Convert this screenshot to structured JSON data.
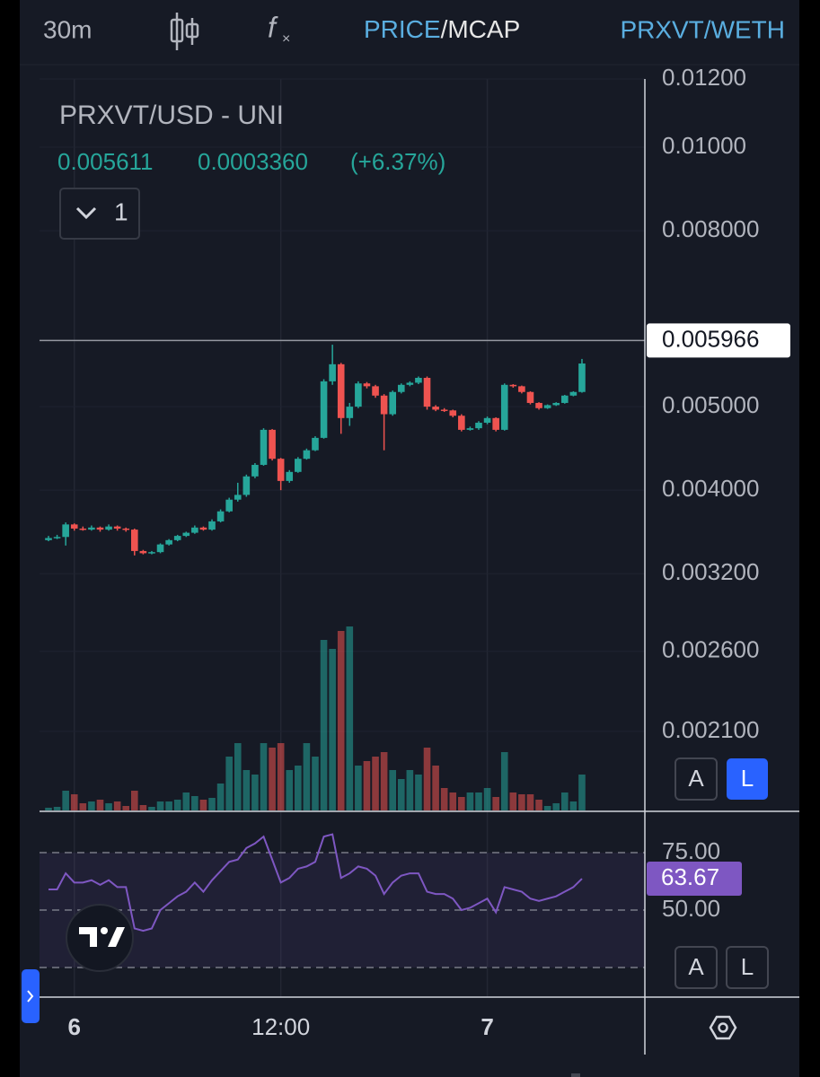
{
  "toolbar": {
    "interval": "30m",
    "price": "PRICE",
    "separator": "/",
    "mcap": "MCAP",
    "pair": "PRXVT/WETH"
  },
  "controls": {
    "auto": "A",
    "log": "L"
  },
  "chart_data": {
    "type": "candlestick",
    "title": "PRXVT/USD - UNI",
    "legend_values": [
      "0.005611",
      "0.0003360",
      "(+6.37%)"
    ],
    "indicator_count": "1",
    "up_color": "#26a69a",
    "down_color": "#ef5350",
    "log_scale": true,
    "grid": true,
    "categories": [
      null,
      null,
      null,
      "6",
      null,
      null,
      null,
      null,
      null,
      null,
      null,
      null,
      null,
      null,
      null,
      null,
      null,
      null,
      null,
      null,
      null,
      null,
      null,
      null,
      null,
      null,
      null,
      "12:00",
      null,
      null,
      null,
      null,
      null,
      null,
      null,
      null,
      null,
      null,
      null,
      null,
      null,
      null,
      null,
      null,
      null,
      null,
      null,
      null,
      null,
      null,
      null,
      "7",
      null,
      null,
      null,
      null,
      null,
      null,
      null,
      null,
      null,
      null,
      null
    ],
    "open": [
      0.0035,
      0.00352,
      0.00353,
      0.00365,
      0.00361,
      0.0036,
      0.00362,
      0.0036,
      0.00363,
      0.00361,
      0.0036,
      0.0034,
      0.00338,
      0.00339,
      0.00346,
      0.0035,
      0.00354,
      0.00357,
      0.00362,
      0.0036,
      0.00368,
      0.00378,
      0.0039,
      0.00395,
      0.00415,
      0.00428,
      0.0047,
      0.00435,
      0.0041,
      0.0042,
      0.00435,
      0.00445,
      0.0046,
      0.00535,
      0.0056,
      0.00485,
      0.005,
      0.00532,
      0.00528,
      0.00515,
      0.0049,
      0.0052,
      0.0053,
      0.00533,
      0.0054,
      0.005,
      0.00496,
      0.00495,
      0.00488,
      0.0047,
      0.00472,
      0.00479,
      0.00485,
      0.0047,
      0.0053,
      0.00528,
      0.0052,
      0.00505,
      0.00498,
      0.00502,
      0.00505,
      0.00515,
      0.0052
    ],
    "high": [
      0.00354,
      0.00355,
      0.00367,
      0.00366,
      0.00363,
      0.00364,
      0.00363,
      0.00365,
      0.00364,
      0.00362,
      0.00361,
      0.00341,
      0.0034,
      0.00347,
      0.00351,
      0.00355,
      0.00358,
      0.00364,
      0.00363,
      0.0037,
      0.0038,
      0.00392,
      0.00408,
      0.00417,
      0.0043,
      0.00472,
      0.00471,
      0.00436,
      0.00422,
      0.00437,
      0.00447,
      0.00462,
      0.00538,
      0.0059,
      0.00562,
      0.00505,
      0.00535,
      0.00534,
      0.0053,
      0.00517,
      0.00522,
      0.00532,
      0.00535,
      0.00542,
      0.00542,
      0.00502,
      0.00498,
      0.00496,
      0.0049,
      0.00474,
      0.00481,
      0.00487,
      0.00486,
      0.00532,
      0.00531,
      0.00529,
      0.00521,
      0.00506,
      0.00503,
      0.00506,
      0.00516,
      0.00521,
      0.00568
    ],
    "low": [
      0.00349,
      0.00351,
      0.00345,
      0.00359,
      0.00359,
      0.00359,
      0.00358,
      0.00359,
      0.00359,
      0.00358,
      0.00336,
      0.00337,
      0.00337,
      0.00338,
      0.00345,
      0.00349,
      0.00353,
      0.00356,
      0.00359,
      0.00359,
      0.00367,
      0.00377,
      0.00388,
      0.00393,
      0.00413,
      0.00427,
      0.00433,
      0.004,
      0.00408,
      0.00419,
      0.00434,
      0.00444,
      0.00459,
      0.0053,
      0.00465,
      0.00475,
      0.00498,
      0.00525,
      0.00512,
      0.00445,
      0.00488,
      0.00518,
      0.00528,
      0.00531,
      0.00496,
      0.00494,
      0.00493,
      0.00486,
      0.00468,
      0.00469,
      0.0047,
      0.00477,
      0.00468,
      0.00469,
      0.00526,
      0.00518,
      0.00503,
      0.00496,
      0.00497,
      0.00501,
      0.00504,
      0.00514,
      0.00519
    ],
    "close": [
      0.00352,
      0.00353,
      0.00365,
      0.00361,
      0.0036,
      0.00362,
      0.0036,
      0.00363,
      0.00361,
      0.0036,
      0.0034,
      0.00338,
      0.00339,
      0.00346,
      0.0035,
      0.00354,
      0.00357,
      0.00362,
      0.0036,
      0.00368,
      0.00378,
      0.0039,
      0.00395,
      0.00415,
      0.00428,
      0.0047,
      0.00435,
      0.0041,
      0.0042,
      0.00435,
      0.00445,
      0.0046,
      0.00535,
      0.0056,
      0.00485,
      0.005,
      0.00532,
      0.00528,
      0.00515,
      0.0049,
      0.0052,
      0.0053,
      0.00533,
      0.0054,
      0.005,
      0.00496,
      0.00495,
      0.00488,
      0.0047,
      0.00472,
      0.00479,
      0.00485,
      0.0047,
      0.0053,
      0.00528,
      0.0052,
      0.00505,
      0.00498,
      0.00502,
      0.00505,
      0.00515,
      0.0052,
      0.005611
    ],
    "volume": [
      3,
      4,
      22,
      18,
      8,
      10,
      12,
      8,
      10,
      5,
      22,
      6,
      4,
      10,
      10,
      12,
      20,
      16,
      12,
      14,
      30,
      60,
      75,
      45,
      40,
      75,
      70,
      75,
      45,
      50,
      75,
      60,
      190,
      180,
      200,
      205,
      50,
      55,
      60,
      65,
      45,
      35,
      45,
      40,
      70,
      50,
      25,
      20,
      15,
      20,
      20,
      25,
      15,
      65,
      20,
      18,
      18,
      12,
      5,
      8,
      20,
      10,
      40
    ],
    "ylim": [
      0.0017,
      0.012
    ],
    "yticks": [
      {
        "value": 0.012,
        "label": "0.01200"
      },
      {
        "value": 0.01,
        "label": "0.01000"
      },
      {
        "value": 0.008,
        "label": "0.008000"
      },
      {
        "value": 0.005,
        "label": "0.005000"
      },
      {
        "value": 0.004,
        "label": "0.004000"
      },
      {
        "value": 0.0032,
        "label": "0.003200"
      },
      {
        "value": 0.0026,
        "label": "0.002600"
      },
      {
        "value": 0.0021,
        "label": "0.002100"
      }
    ],
    "price_line": {
      "value": 0.005966,
      "label": "0.005966"
    },
    "rsi": {
      "color": "#7e57c2",
      "values": [
        59,
        59,
        66,
        62,
        62,
        63,
        61,
        63,
        60,
        60,
        42,
        41,
        42,
        50,
        53,
        56,
        58,
        62,
        58,
        63,
        67,
        71,
        72,
        77,
        79,
        82,
        72,
        62,
        64,
        68,
        69,
        71,
        82,
        83,
        64,
        66,
        69,
        68,
        65,
        57,
        62,
        65,
        66,
        66,
        58,
        57,
        57,
        55,
        50,
        51,
        53,
        55,
        49,
        60,
        59,
        58,
        55,
        54,
        55,
        56,
        58,
        60,
        63.67
      ],
      "ylim": [
        12.5,
        92.6
      ],
      "yticks": [
        {
          "value": 75,
          "label": "75.00"
        },
        {
          "value": 50,
          "label": "50.00"
        },
        {
          "value": 25,
          "label": null
        }
      ]
    }
  }
}
